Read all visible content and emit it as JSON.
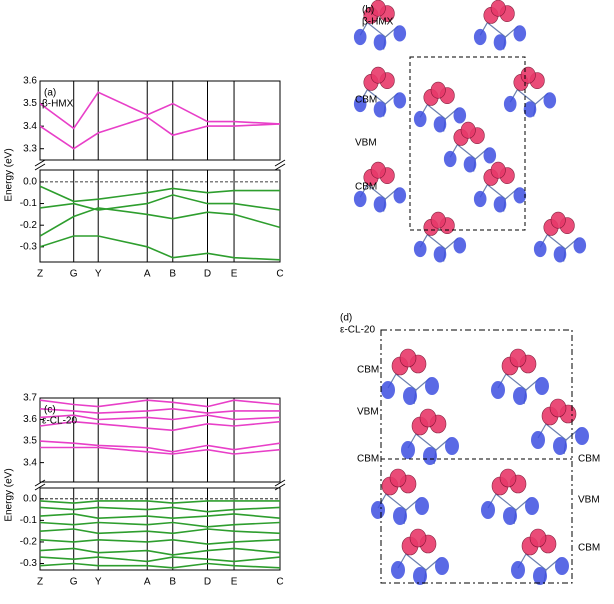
{
  "chart_data": [
    {
      "type": "line",
      "panel_label": "(a)",
      "annotation": "β-HMX",
      "ylabel": "Energy (eV)",
      "x": [
        0,
        0.33,
        0.57,
        1.05,
        1.3,
        1.64,
        1.9,
        2.35
      ],
      "xlim": [
        0,
        2.35
      ],
      "ylim": [
        3.25,
        3.6
      ],
      "yticks": [
        3.3,
        3.4,
        3.5,
        3.6
      ],
      "series": [
        {
          "color": "#e83fc8",
          "values": [
            3.4,
            3.3,
            3.37,
            3.44,
            3.36,
            3.4,
            3.4,
            3.41
          ]
        },
        {
          "color": "#e83fc8",
          "values": [
            3.5,
            3.39,
            3.55,
            3.45,
            3.5,
            3.42,
            3.42,
            3.41
          ]
        }
      ]
    },
    {
      "type": "line",
      "x": [
        0,
        0.33,
        0.57,
        1.05,
        1.3,
        1.64,
        1.9,
        2.35
      ],
      "xlim": [
        0,
        2.35
      ],
      "ylim": [
        -0.37,
        0.055
      ],
      "yticks": [
        {
          "value": 0,
          "label": "0.0"
        },
        -0.1,
        -0.2,
        -0.3
      ],
      "xticks": [
        {
          "value": 0,
          "label": "Z"
        },
        {
          "value": 0.33,
          "label": "G"
        },
        {
          "value": 0.57,
          "label": "Y"
        },
        {
          "value": 1.05,
          "label": "A"
        },
        {
          "value": 1.3,
          "label": "B"
        },
        {
          "value": 1.64,
          "label": "D"
        },
        {
          "value": 1.9,
          "label": "E"
        },
        {
          "value": 2.35,
          "label": "C"
        }
      ],
      "series": [
        {
          "color": "#2e9e2e",
          "values": [
            -0.02,
            -0.09,
            -0.08,
            -0.05,
            -0.03,
            -0.05,
            -0.04,
            -0.04
          ]
        },
        {
          "color": "#2e9e2e",
          "values": [
            -0.12,
            -0.1,
            -0.13,
            -0.1,
            -0.06,
            -0.1,
            -0.1,
            -0.13
          ]
        },
        {
          "color": "#2e9e2e",
          "values": [
            -0.25,
            -0.16,
            -0.12,
            -0.15,
            -0.17,
            -0.14,
            -0.15,
            -0.21
          ]
        },
        {
          "color": "#2e9e2e",
          "values": [
            -0.3,
            -0.25,
            -0.25,
            -0.3,
            -0.35,
            -0.33,
            -0.35,
            -0.36
          ]
        }
      ]
    },
    {
      "type": "line",
      "panel_label": "(c)",
      "annotation": "ε-CL-20",
      "ylabel": "Energy (eV)",
      "x": [
        0,
        0.33,
        0.57,
        1.05,
        1.3,
        1.64,
        1.9,
        2.35
      ],
      "xlim": [
        0,
        2.35
      ],
      "ylim": [
        3.31,
        3.7
      ],
      "yticks": [
        3.4,
        3.5,
        3.6,
        3.7
      ],
      "series": [
        {
          "color": "#e83fc8",
          "values": [
            3.69,
            3.67,
            3.66,
            3.69,
            3.68,
            3.66,
            3.69,
            3.67
          ]
        },
        {
          "color": "#e83fc8",
          "values": [
            3.65,
            3.64,
            3.63,
            3.64,
            3.65,
            3.63,
            3.64,
            3.64
          ]
        },
        {
          "color": "#e83fc8",
          "values": [
            3.61,
            3.62,
            3.6,
            3.61,
            3.6,
            3.62,
            3.6,
            3.61
          ]
        },
        {
          "color": "#e83fc8",
          "values": [
            3.57,
            3.59,
            3.58,
            3.56,
            3.55,
            3.58,
            3.57,
            3.59
          ]
        },
        {
          "color": "#e83fc8",
          "values": [
            3.5,
            3.49,
            3.48,
            3.47,
            3.45,
            3.48,
            3.46,
            3.49
          ]
        },
        {
          "color": "#e83fc8",
          "values": [
            3.47,
            3.47,
            3.47,
            3.45,
            3.44,
            3.46,
            3.44,
            3.46
          ]
        }
      ]
    },
    {
      "type": "line",
      "x": [
        0,
        0.33,
        0.57,
        1.05,
        1.3,
        1.64,
        1.9,
        2.35
      ],
      "xlim": [
        0,
        2.35
      ],
      "ylim": [
        -0.33,
        0.05
      ],
      "yticks": [
        {
          "value": 0,
          "label": "0.0"
        },
        -0.1,
        -0.2,
        -0.3
      ],
      "xticks": [
        {
          "value": 0,
          "label": "Z"
        },
        {
          "value": 0.33,
          "label": "G"
        },
        {
          "value": 0.57,
          "label": "Y"
        },
        {
          "value": 1.05,
          "label": "A"
        },
        {
          "value": 1.3,
          "label": "B"
        },
        {
          "value": 1.64,
          "label": "D"
        },
        {
          "value": 1.9,
          "label": "E"
        },
        {
          "value": 2.35,
          "label": "C"
        }
      ],
      "series": [
        {
          "color": "#2e9e2e",
          "values": [
            -0.01,
            -0.02,
            -0.01,
            -0.01,
            -0.02,
            -0.01,
            -0.01,
            -0.01
          ]
        },
        {
          "color": "#2e9e2e",
          "values": [
            -0.04,
            -0.05,
            -0.04,
            -0.05,
            -0.04,
            -0.06,
            -0.05,
            -0.04
          ]
        },
        {
          "color": "#2e9e2e",
          "values": [
            -0.08,
            -0.07,
            -0.09,
            -0.08,
            -0.09,
            -0.08,
            -0.07,
            -0.09
          ]
        },
        {
          "color": "#2e9e2e",
          "values": [
            -0.11,
            -0.12,
            -0.11,
            -0.12,
            -0.11,
            -0.13,
            -0.12,
            -0.11
          ]
        },
        {
          "color": "#2e9e2e",
          "values": [
            -0.15,
            -0.14,
            -0.16,
            -0.15,
            -0.16,
            -0.14,
            -0.15,
            -0.16
          ]
        },
        {
          "color": "#2e9e2e",
          "values": [
            -0.19,
            -0.2,
            -0.19,
            -0.2,
            -0.19,
            -0.21,
            -0.2,
            -0.19
          ]
        },
        {
          "color": "#2e9e2e",
          "values": [
            -0.24,
            -0.23,
            -0.25,
            -0.24,
            -0.26,
            -0.24,
            -0.23,
            -0.25
          ]
        },
        {
          "color": "#2e9e2e",
          "values": [
            -0.27,
            -0.28,
            -0.27,
            -0.29,
            -0.27,
            -0.28,
            -0.29,
            -0.27
          ]
        },
        {
          "color": "#2e9e2e",
          "values": [
            -0.31,
            -0.3,
            -0.31,
            -0.31,
            -0.32,
            -0.3,
            -0.31,
            -0.32
          ]
        }
      ]
    }
  ],
  "structures": [
    {
      "panel_label": "(b)",
      "compound": "β-HMX",
      "labels": [
        "CBM",
        "VBM",
        "CBM"
      ]
    },
    {
      "panel_label": "(d)",
      "compound": "ε-CL-20",
      "labels": [
        "CBM",
        "VBM",
        "CBM",
        "CBM",
        "VBM",
        "CBM"
      ]
    }
  ]
}
